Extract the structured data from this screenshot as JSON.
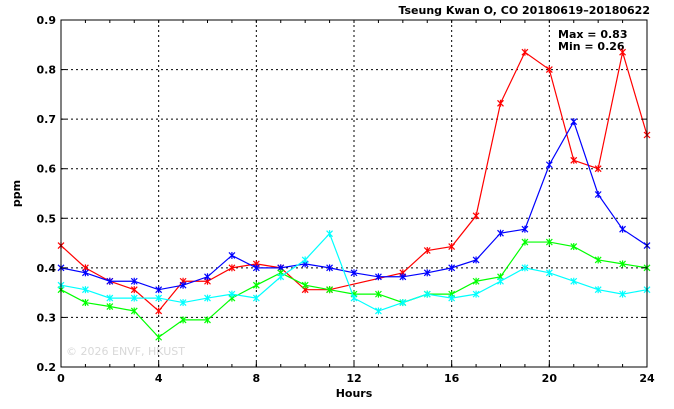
{
  "chart_data": {
    "type": "line",
    "title": "Tseung Kwan O, CO 20180619–20180622",
    "xlabel": "Hours",
    "ylabel": "ppm",
    "xlim": [
      0,
      24
    ],
    "ylim": [
      0.2,
      0.9
    ],
    "xticks": [
      0,
      4,
      8,
      12,
      16,
      20,
      24
    ],
    "yticks": [
      0.2,
      0.3,
      0.4,
      0.5,
      0.6,
      0.7,
      0.8,
      0.9
    ],
    "ytick_labels": [
      "0.2",
      "0.3",
      "0.4",
      "0.5",
      "0.6",
      "0.7",
      "0.8",
      "0.9"
    ],
    "grid": true,
    "stats": {
      "max": "Max = 0.83",
      "min": "Min = 0.26"
    },
    "watermark": "© 2026  ENVF, HKUST",
    "series": [
      {
        "color": "#ff0000",
        "x": [
          0,
          1,
          2,
          3,
          4,
          5,
          6,
          7,
          8,
          9,
          10,
          11,
          14,
          15,
          16,
          17,
          18,
          19,
          20,
          21,
          22,
          23,
          24
        ],
        "values": [
          0.445,
          0.4,
          0.373,
          0.356,
          0.313,
          0.373,
          0.373,
          0.4,
          0.408,
          0.4,
          0.356,
          0.356,
          0.39,
          0.435,
          0.443,
          0.505,
          0.732,
          0.835,
          0.8,
          0.617,
          0.6,
          0.835,
          0.668
        ]
      },
      {
        "color": "#0000ff",
        "x": [
          0,
          1,
          2,
          3,
          4,
          5,
          6,
          7,
          8,
          9,
          10,
          11,
          12,
          13,
          14,
          15,
          16,
          17,
          18,
          19,
          20,
          21,
          22,
          23,
          24
        ],
        "values": [
          0.4,
          0.39,
          0.373,
          0.373,
          0.356,
          0.365,
          0.382,
          0.425,
          0.4,
          0.4,
          0.408,
          0.4,
          0.39,
          0.382,
          0.382,
          0.39,
          0.4,
          0.416,
          0.47,
          0.478,
          0.608,
          0.695,
          0.548,
          0.478,
          0.445
        ]
      },
      {
        "color": "#00ff00",
        "x": [
          0,
          1,
          2,
          3,
          4,
          5,
          6,
          7,
          8,
          9,
          10,
          11,
          12,
          13,
          14,
          15,
          16,
          17,
          18,
          19,
          20,
          21,
          22,
          23,
          24
        ],
        "values": [
          0.356,
          0.33,
          0.322,
          0.313,
          0.26,
          0.295,
          0.295,
          0.339,
          0.365,
          0.39,
          0.365,
          0.356,
          0.347,
          0.347,
          0.33,
          0.347,
          0.347,
          0.373,
          0.382,
          0.452,
          0.452,
          0.443,
          0.416,
          0.408,
          0.4
        ]
      },
      {
        "color": "#00ffff",
        "x": [
          0,
          1,
          2,
          3,
          4,
          5,
          6,
          7,
          8,
          9,
          10,
          11,
          12,
          13,
          14,
          15,
          16,
          17,
          18,
          19,
          20,
          21,
          22,
          23,
          24
        ],
        "values": [
          0.365,
          0.356,
          0.339,
          0.339,
          0.339,
          0.33,
          0.339,
          0.347,
          0.339,
          0.382,
          0.416,
          0.469,
          0.339,
          0.313,
          0.33,
          0.347,
          0.339,
          0.347,
          0.373,
          0.4,
          0.39,
          0.373,
          0.356,
          0.347,
          0.356
        ]
      }
    ]
  }
}
